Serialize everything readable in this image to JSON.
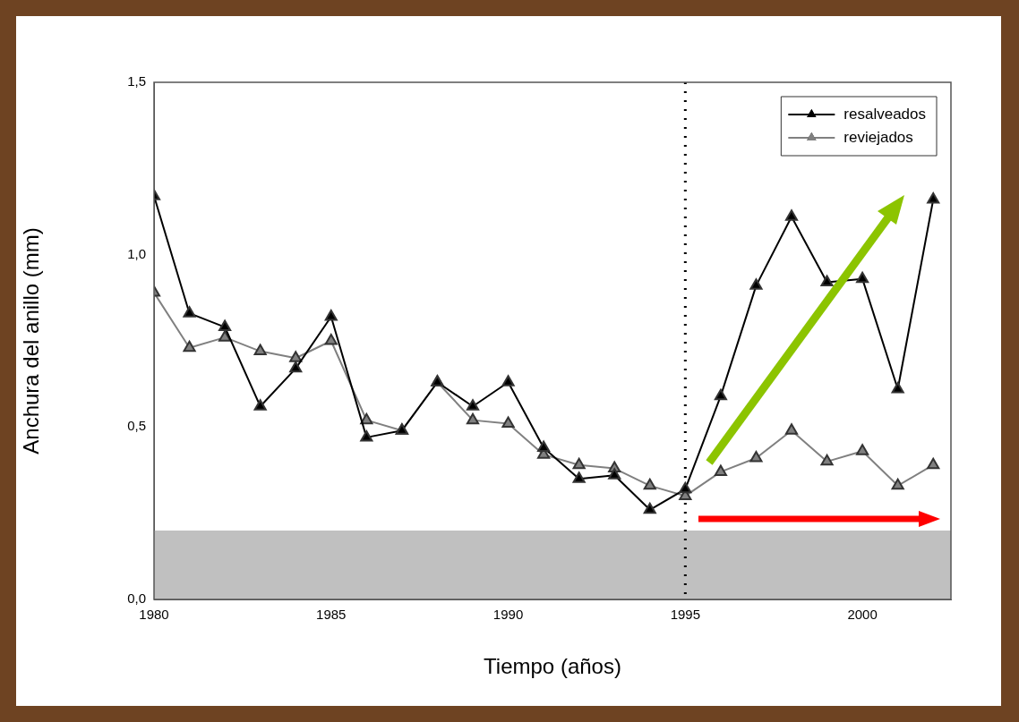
{
  "chart_data": {
    "type": "line",
    "xlabel": "Tiempo (años)",
    "ylabel": "Anchura del anillo (mm)",
    "x": [
      1980,
      1981,
      1982,
      1983,
      1984,
      1985,
      1986,
      1987,
      1988,
      1989,
      1990,
      1991,
      1992,
      1993,
      1994,
      1995,
      1996,
      1997,
      1998,
      1999,
      2000,
      2001,
      2002
    ],
    "series": [
      {
        "name": "resalveados",
        "color": "#000000",
        "marker": "triangle",
        "values": [
          1.17,
          0.83,
          0.79,
          0.56,
          0.67,
          0.82,
          0.47,
          0.49,
          0.63,
          0.56,
          0.63,
          0.44,
          0.35,
          0.36,
          0.26,
          0.32,
          0.59,
          0.91,
          1.11,
          0.92,
          0.93,
          0.61,
          1.16
        ]
      },
      {
        "name": "reviejados",
        "color": "#808080",
        "marker": "triangle",
        "values": [
          0.89,
          0.73,
          0.76,
          0.72,
          0.7,
          0.75,
          0.52,
          0.49,
          0.63,
          0.52,
          0.51,
          0.42,
          0.39,
          0.38,
          0.33,
          0.3,
          0.37,
          0.41,
          0.49,
          0.4,
          0.43,
          0.33,
          0.39
        ]
      }
    ],
    "xlim": [
      1980,
      2002.5
    ],
    "xticks": [
      1980,
      1985,
      1990,
      1995,
      2000
    ],
    "ylim": [
      0,
      1.5
    ],
    "yticks": [
      {
        "value": 0,
        "label": "0,0"
      },
      {
        "value": 0.5,
        "label": "0,5"
      },
      {
        "value": 1,
        "label": "1,0"
      },
      {
        "value": 1.5,
        "label": "1,5"
      }
    ],
    "ref_lines": [
      {
        "axis": "x",
        "value": 1995,
        "color": "#000000",
        "line_style": "dotted"
      }
    ],
    "bands": [
      {
        "axis": "y",
        "from": 0,
        "to": 0.2,
        "color": "#c0c0c0"
      }
    ],
    "grid": false,
    "legend": "top right"
  }
}
